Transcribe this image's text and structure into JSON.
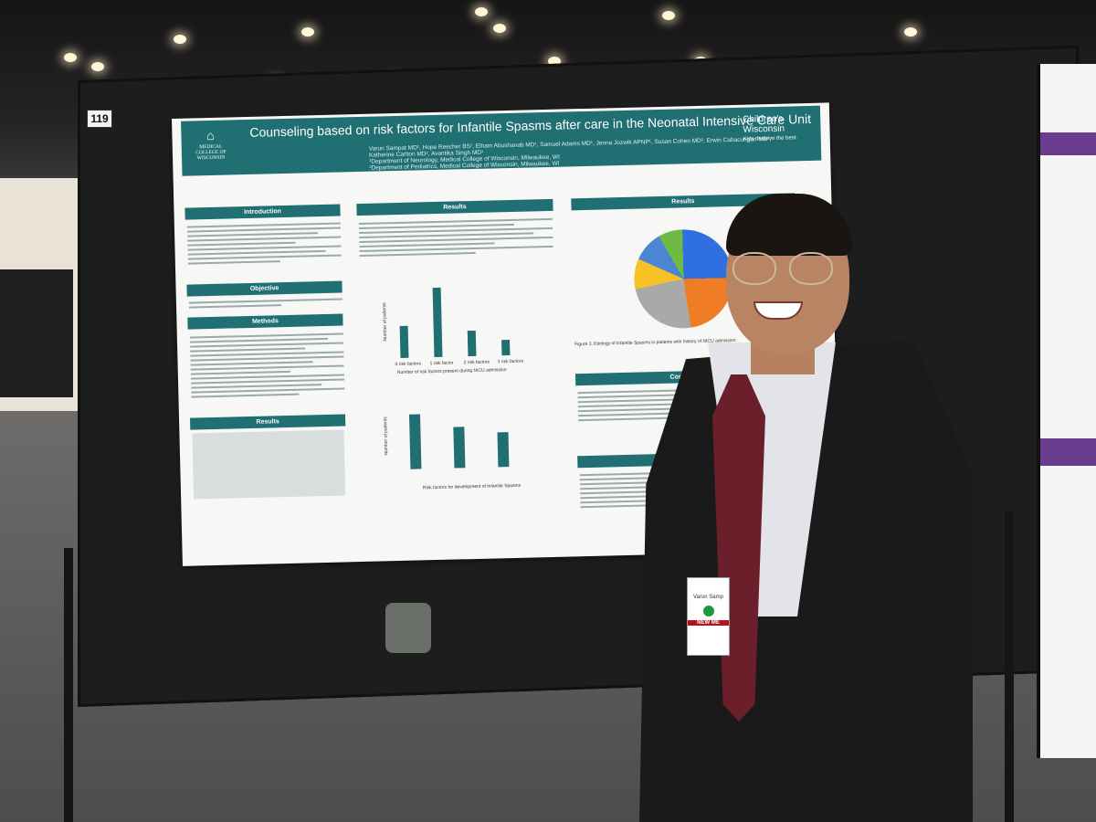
{
  "booth_number": "119",
  "poster": {
    "title": "Counseling based on risk factors for Infantile Spasms after care in the Neonatal Intensive Care Unit",
    "authors": "Varun Sampat MD¹, Hope Reecher BS¹, Elham Abushanab MD¹, Samuel Adams MD¹, Jenna Jozwik APNP¹, Susan Cohen MD², Erwin Cabacungan MD², Katherine Carlton MD², Avantika Singh MD¹",
    "affiliation_1": "¹Department of Neurology, Medical College of Wisconsin, Milwaukee, WI",
    "affiliation_2": "²Department of Pediatrics, Medical College of Wisconsin, Milwaukee, WI",
    "logo_left": "MEDICAL COLLEGE OF WISCONSIN",
    "logo_right_name": "Children's Wisconsin",
    "logo_right_tagline": "Kids deserve the best.",
    "sections": {
      "introduction": "Introduction",
      "objective": "Objective",
      "methods": "Methods",
      "results_left": "Results",
      "results_middle": "Results",
      "results_right": "Results",
      "conclusion": "Conclusion",
      "references": "References"
    },
    "chart1": {
      "xlabel": "Number of risk factors present during NICU admission",
      "ylabel": "Number of patients",
      "categories": [
        "0 risk factors",
        "1 risk factor",
        "2 risk factors",
        "3 risk factors"
      ],
      "values": [
        22,
        48,
        18,
        11
      ]
    },
    "chart2": {
      "xlabel": "Risk factors for development of Infantile Spasms",
      "ylabel": "Number of patients",
      "values": [
        55,
        40,
        35
      ]
    },
    "figure3_caption": "Figure 3. Etiology of Infantile Spasms in patients with history of NICU admission"
  },
  "badge": {
    "name": "Varun Samp",
    "tag": "NEW ME"
  },
  "colors": {
    "poster_teal": "#1f6f73",
    "tie": "#6b1f2b",
    "badge_dot": "#1d9a3d"
  }
}
